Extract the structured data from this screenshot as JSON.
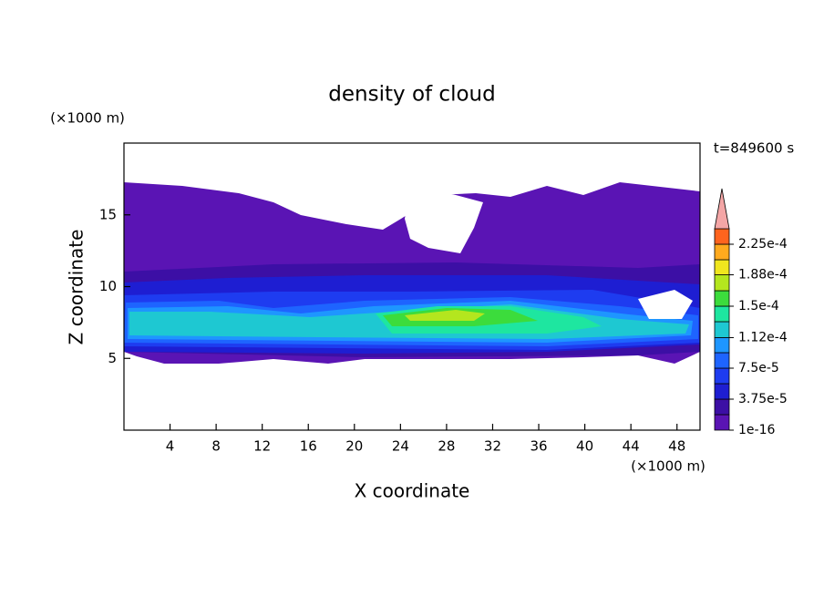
{
  "chart_data": {
    "type": "contour",
    "title": "density of cloud",
    "x_label": "X coordinate",
    "y_label": "Z coordinate",
    "x_unit": "(×1000 m)",
    "y_unit": "(×1000 m)",
    "annotation": "t=849600 s",
    "xlim": [
      0,
      50
    ],
    "ylim": [
      0,
      20
    ],
    "xticks": [
      4,
      8,
      12,
      16,
      20,
      24,
      28,
      32,
      36,
      40,
      44,
      48
    ],
    "yticks": [
      5,
      10,
      15
    ],
    "levels": [
      1e-16,
      1.875e-05,
      3.75e-05,
      5.625e-05,
      7.5e-05,
      9.375e-05,
      0.000112,
      0.00013125,
      0.00015,
      0.00016875,
      0.000188,
      0.00020625,
      0.000225,
      0.00024375
    ],
    "colors": [
      "#5a14b4",
      "#3c0fa5",
      "#1e1ed2",
      "#1e3cf0",
      "#1e64ff",
      "#1e96ff",
      "#1ec8d2",
      "#1ee6a0",
      "#3cdc3c",
      "#b4e61e",
      "#f0e61e",
      "#ffaa1e",
      "#ff641e"
    ],
    "extend_color": "#f4a6a6",
    "colorbar_ticks": [
      {
        "value": 1e-16,
        "label": "1e-16"
      },
      {
        "value": 3.75e-05,
        "label": "3.75e-5"
      },
      {
        "value": 7.5e-05,
        "label": "7.5e-5"
      },
      {
        "value": 0.000112,
        "label": "1.12e-4"
      },
      {
        "value": 0.00015,
        "label": "1.5e-4"
      },
      {
        "value": 0.000188,
        "label": "1.88e-4"
      },
      {
        "value": 0.000225,
        "label": "2.25e-4"
      }
    ]
  }
}
